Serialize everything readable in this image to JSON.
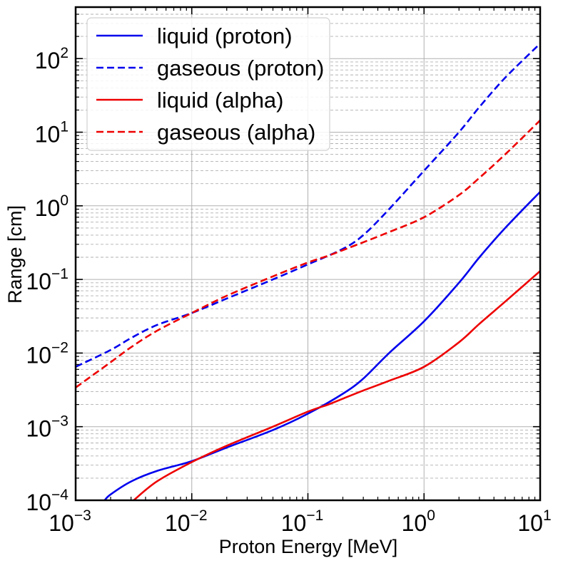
{
  "chart_data": {
    "type": "line",
    "xlabel": "Proton Energy [MeV]",
    "ylabel": "Range [cm]",
    "xscale": "log",
    "yscale": "log",
    "xlim": [
      0.001,
      10
    ],
    "ylim": [
      0.0001,
      500
    ],
    "x_ticks": [
      {
        "mantissa": "10",
        "exp": "−3"
      },
      {
        "mantissa": "10",
        "exp": "−2"
      },
      {
        "mantissa": "10",
        "exp": "−1"
      },
      {
        "mantissa": "10",
        "exp": "0"
      },
      {
        "mantissa": "10",
        "exp": "1"
      }
    ],
    "y_ticks": [
      {
        "mantissa": "10",
        "exp": "−4"
      },
      {
        "mantissa": "10",
        "exp": "−3"
      },
      {
        "mantissa": "10",
        "exp": "−2"
      },
      {
        "mantissa": "10",
        "exp": "−1"
      },
      {
        "mantissa": "10",
        "exp": "0"
      },
      {
        "mantissa": "10",
        "exp": "1"
      },
      {
        "mantissa": "10",
        "exp": "2"
      }
    ],
    "grid": "major solid, y-minor dashed",
    "legend_position": "top-left",
    "series": [
      {
        "name": "liquid (proton)",
        "color": "#0000ee",
        "style": "solid",
        "x": [
          0.00178,
          0.002,
          0.003,
          0.005,
          0.01,
          0.02,
          0.05,
          0.1,
          0.2,
          0.3,
          0.5,
          1,
          2,
          3,
          5,
          10
        ],
        "y": [
          0.0001,
          0.00012,
          0.00018,
          0.00025,
          0.00034,
          0.00052,
          0.0009,
          0.0015,
          0.0028,
          0.0045,
          0.01,
          0.027,
          0.09,
          0.2,
          0.5,
          1.55
        ]
      },
      {
        "name": "gaseous (proton)",
        "color": "#0000ee",
        "style": "dashed",
        "x": [
          0.001,
          0.002,
          0.003,
          0.005,
          0.01,
          0.02,
          0.05,
          0.1,
          0.2,
          0.3,
          0.5,
          1,
          2,
          3,
          5,
          10
        ],
        "y": [
          0.0065,
          0.011,
          0.016,
          0.024,
          0.035,
          0.055,
          0.1,
          0.16,
          0.26,
          0.4,
          0.9,
          3.0,
          10,
          22,
          55,
          160
        ]
      },
      {
        "name": "liquid (alpha)",
        "color": "#ee0000",
        "style": "solid",
        "x": [
          0.00316,
          0.005,
          0.01,
          0.02,
          0.05,
          0.1,
          0.15,
          0.2,
          0.3,
          0.5,
          1,
          2,
          3,
          5,
          10
        ],
        "y": [
          0.0001,
          0.00018,
          0.00033,
          0.00055,
          0.001,
          0.0016,
          0.002,
          0.0024,
          0.0031,
          0.0042,
          0.0065,
          0.014,
          0.025,
          0.05,
          0.13
        ]
      },
      {
        "name": "gaseous (alpha)",
        "color": "#ee0000",
        "style": "dashed",
        "x": [
          0.001,
          0.002,
          0.003,
          0.005,
          0.01,
          0.02,
          0.05,
          0.1,
          0.15,
          0.2,
          0.3,
          0.5,
          1,
          2,
          3,
          5,
          10
        ],
        "y": [
          0.0034,
          0.0075,
          0.012,
          0.02,
          0.035,
          0.06,
          0.11,
          0.17,
          0.21,
          0.25,
          0.32,
          0.44,
          0.7,
          1.4,
          2.4,
          5,
          14.5
        ]
      }
    ]
  }
}
